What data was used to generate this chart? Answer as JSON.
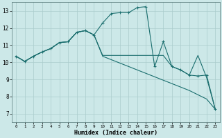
{
  "xlabel": "Humidex (Indice chaleur)",
  "ylabel": "",
  "bg_color": "#cce8e8",
  "grid_color": "#aacccc",
  "line_color": "#1a6e6e",
  "xlim": [
    -0.5,
    23.5
  ],
  "ylim": [
    6.5,
    13.5
  ],
  "yticks": [
    7,
    8,
    9,
    10,
    11,
    12,
    13
  ],
  "xticks": [
    0,
    1,
    2,
    3,
    4,
    5,
    6,
    7,
    8,
    9,
    10,
    11,
    12,
    13,
    14,
    15,
    16,
    17,
    18,
    19,
    20,
    21,
    22,
    23
  ],
  "line1_x": [
    0,
    1,
    2,
    3,
    4,
    5,
    6,
    7,
    8,
    9,
    10,
    11,
    12,
    13,
    14,
    15,
    16,
    17,
    18,
    19,
    20,
    21,
    22,
    23
  ],
  "line1_y": [
    10.35,
    10.05,
    10.35,
    10.6,
    10.8,
    11.15,
    11.2,
    11.75,
    11.85,
    11.6,
    12.3,
    12.85,
    12.9,
    12.9,
    13.2,
    13.25,
    9.75,
    11.2,
    9.75,
    9.55,
    9.25,
    9.2,
    9.25,
    7.25
  ],
  "line2_x": [
    0,
    1,
    2,
    3,
    4,
    5,
    6,
    7,
    8,
    9,
    10,
    11,
    12,
    13,
    14,
    15,
    16,
    17,
    18,
    19,
    20,
    21,
    22,
    23
  ],
  "line2_y": [
    10.35,
    10.05,
    10.35,
    10.6,
    10.8,
    11.15,
    11.2,
    11.75,
    11.85,
    11.6,
    10.4,
    10.4,
    10.4,
    10.4,
    10.4,
    10.4,
    10.4,
    10.4,
    9.75,
    9.55,
    9.25,
    10.4,
    9.1,
    7.25
  ],
  "line3_x": [
    0,
    1,
    2,
    3,
    4,
    5,
    6,
    7,
    8,
    9,
    10,
    11,
    12,
    13,
    14,
    15,
    16,
    17,
    18,
    19,
    20,
    21,
    22,
    23
  ],
  "line3_y": [
    10.35,
    10.05,
    10.35,
    10.6,
    10.8,
    11.15,
    11.2,
    11.75,
    11.85,
    11.6,
    10.35,
    10.15,
    9.95,
    9.75,
    9.55,
    9.35,
    9.15,
    8.95,
    8.75,
    8.55,
    8.35,
    8.1,
    7.85,
    7.25
  ]
}
